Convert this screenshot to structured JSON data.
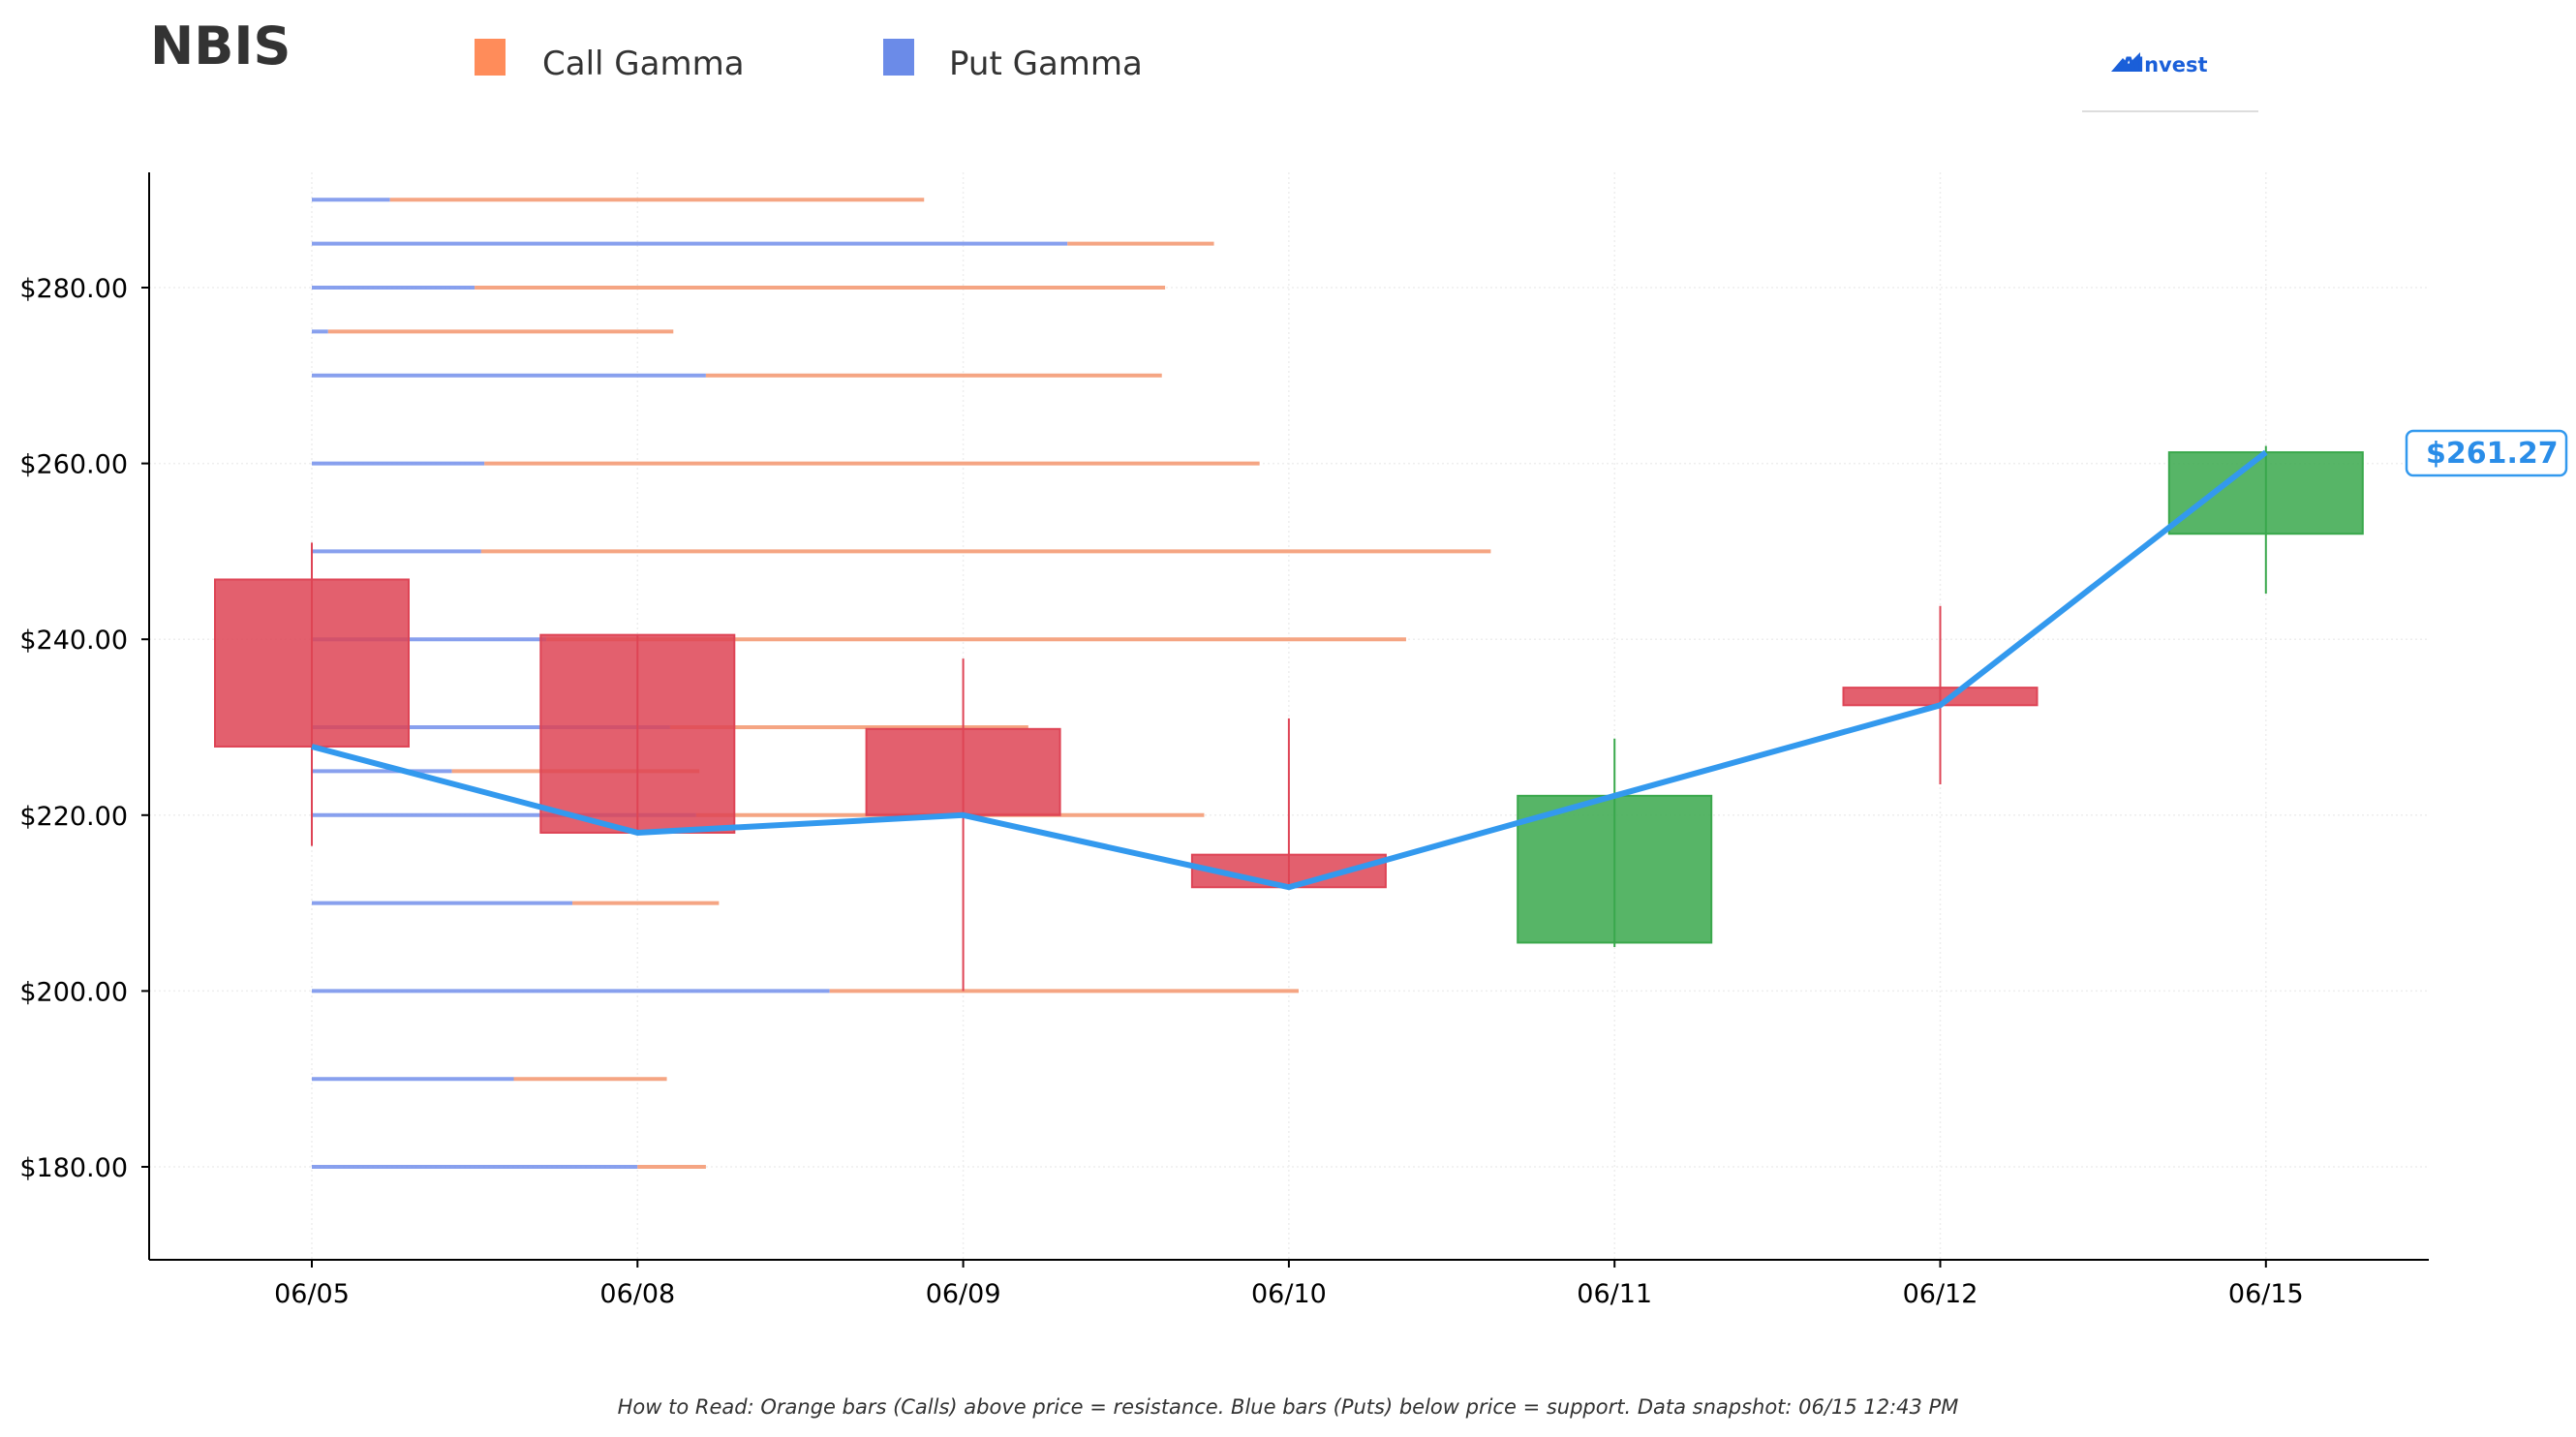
{
  "header": {
    "ticker": "NBIS",
    "logo_text": "AInvest"
  },
  "legend": [
    {
      "label": "Call Gamma",
      "color": "#ff8c5a"
    },
    {
      "label": "Put Gamma",
      "color": "#6b8be8"
    }
  ],
  "price_label": "$261.27",
  "footer_text": "How to Read: Orange bars (Calls) above price = resistance. Blue bars (Puts) below price = support. Data snapshot: 06/15 12:43 PM",
  "colors": {
    "call": "#f4a07c",
    "put": "#7b96ec",
    "up": "#3aa84c",
    "down": "#de4455",
    "line": "#3399ee"
  },
  "chart_data": {
    "type": "candlestick",
    "categories": [
      "06/05",
      "06/08",
      "06/09",
      "06/10",
      "06/11",
      "06/12",
      "06/15"
    ],
    "ylim": [
      170,
      293
    ],
    "yticks": [
      180,
      200,
      220,
      240,
      260,
      280
    ],
    "ytick_labels": [
      "$180.00",
      "$200.00",
      "$220.00",
      "$240.00",
      "$260.00",
      "$280.00"
    ],
    "candles": [
      {
        "date": "06/05",
        "open": 246.8,
        "high": 251,
        "low": 216.5,
        "close": 227.8
      },
      {
        "date": "06/08",
        "open": 240.5,
        "high": 240.5,
        "low": 218,
        "close": 218
      },
      {
        "date": "06/09",
        "open": 229.8,
        "high": 237.8,
        "low": 200,
        "close": 220
      },
      {
        "date": "06/10",
        "open": 215.5,
        "high": 231,
        "low": 211.8,
        "close": 211.8
      },
      {
        "date": "06/11",
        "open": 205.5,
        "high": 228.7,
        "low": 205,
        "close": 222.2
      },
      {
        "date": "06/12",
        "open": 234.5,
        "high": 243.8,
        "low": 223.5,
        "close": 232.5
      },
      {
        "date": "06/15",
        "open": 252,
        "high": 262,
        "low": 245.2,
        "close": 261.27
      }
    ],
    "price_line": [
      227.8,
      218,
      220,
      211.8,
      222.2,
      232.5,
      261.27
    ],
    "gamma_levels": [
      {
        "strike": 290,
        "put": 0.24,
        "call": 1.64
      },
      {
        "strike": 285,
        "put": 2.32,
        "call": 0.45
      },
      {
        "strike": 280,
        "put": 0.5,
        "call": 2.12
      },
      {
        "strike": 275,
        "put": 0.05,
        "call": 1.06
      },
      {
        "strike": 270,
        "put": 1.21,
        "call": 1.4
      },
      {
        "strike": 260,
        "put": 0.53,
        "call": 2.38
      },
      {
        "strike": 250,
        "put": 0.52,
        "call": 3.1
      },
      {
        "strike": 240,
        "put": 0.72,
        "call": 2.64
      },
      {
        "strike": 230,
        "put": 1.1,
        "call": 1.1
      },
      {
        "strike": 225,
        "put": 0.43,
        "call": 0.76
      },
      {
        "strike": 220,
        "put": 1.18,
        "call": 1.56
      },
      {
        "strike": 210,
        "put": 0.8,
        "call": 0.45
      },
      {
        "strike": 200,
        "put": 1.59,
        "call": 1.44
      },
      {
        "strike": 190,
        "put": 0.62,
        "call": 0.47
      },
      {
        "strike": 180,
        "put": 1.0,
        "call": 0.21
      }
    ]
  }
}
